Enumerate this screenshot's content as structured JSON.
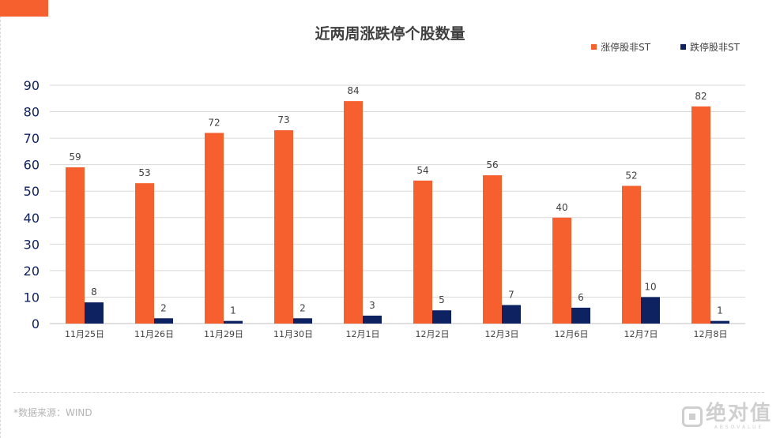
{
  "chart_data": {
    "type": "bar",
    "title": "近两周涨跌停个股数量",
    "categories": [
      "11月25日",
      "11月26日",
      "11月29日",
      "11月30日",
      "12月1日",
      "12月2日",
      "12月3日",
      "12月6日",
      "12月7日",
      "12月8日"
    ],
    "series": [
      {
        "name": "涨停股非ST",
        "color": "#F65F2E",
        "values": [
          59,
          53,
          72,
          73,
          84,
          54,
          56,
          40,
          52,
          82
        ]
      },
      {
        "name": "跌停股非ST",
        "color": "#0E2160",
        "values": [
          8,
          2,
          1,
          2,
          3,
          5,
          7,
          6,
          10,
          1
        ]
      }
    ],
    "ylim": [
      0,
      90
    ],
    "yticks": [
      0,
      10,
      20,
      30,
      40,
      50,
      60,
      70,
      80,
      90
    ],
    "grid": true,
    "legend": "top-right",
    "data_labels": true,
    "xlabel": "",
    "ylabel": ""
  },
  "footer": {
    "source": "*数据来源：WIND"
  },
  "logo": {
    "name": "绝对值",
    "sub": "ABSOVALUE"
  }
}
